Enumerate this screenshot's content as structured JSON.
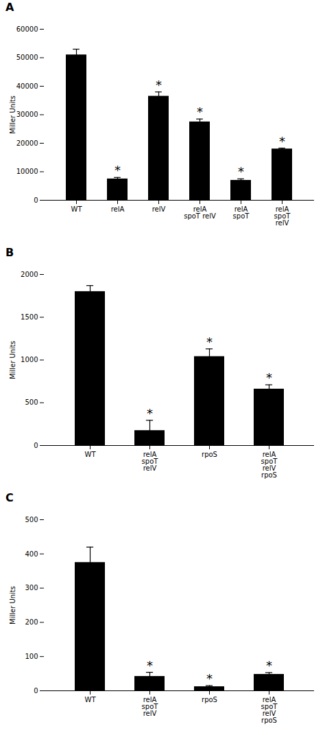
{
  "chart_data": [
    {
      "type": "bar",
      "title": "A",
      "categories": [
        "WT",
        "relA",
        "relV",
        "relA\nspoT relV",
        "relA\nspoT",
        "relA\nspoT\nrelV"
      ],
      "values": [
        51000,
        7500,
        36500,
        27500,
        7000,
        18000
      ],
      "errors": [
        2000,
        500,
        1500,
        1000,
        500,
        300
      ],
      "annotations": [
        {
          "category": "relA",
          "text": "*"
        },
        {
          "category": "relV",
          "text": "*"
        },
        {
          "category": "relA\nspoT relV",
          "text": "*"
        },
        {
          "category": "relA\nspoT",
          "text": "*"
        },
        {
          "category": "relA\nspoT\nrelV",
          "text": "*"
        }
      ],
      "ylabel": "Miller Units",
      "color": "#000000",
      "ylim": [
        0,
        60000
      ],
      "yticks": [
        0,
        10000,
        20000,
        30000,
        40000,
        50000,
        60000
      ]
    },
    {
      "type": "bar",
      "title": "B",
      "categories": [
        "WT",
        "relA\nspoT\nrelV",
        "rpoS",
        "relA\nspoT\nrelV\nrpoS"
      ],
      "values": [
        1800,
        175,
        1040,
        660
      ],
      "errors": [
        70,
        120,
        90,
        50
      ],
      "annotations": [
        {
          "category": "relA\nspoT\nrelV",
          "text": "*"
        },
        {
          "category": "rpoS",
          "text": "*"
        },
        {
          "category": "relA\nspoT\nrelV\nrpoS",
          "text": "*"
        }
      ],
      "ylabel": "Miller Units",
      "color": "#000000",
      "ylim": [
        0,
        2000
      ],
      "yticks": [
        0,
        500,
        1000,
        1500,
        2000
      ]
    },
    {
      "type": "bar",
      "title": "C",
      "categories": [
        "WT",
        "relA\nspoT\nrelV",
        "rpoS",
        "relA\nspoT\nrelV\nrpoS"
      ],
      "values": [
        375,
        42,
        12,
        48
      ],
      "errors": [
        45,
        12,
        3,
        5
      ],
      "annotations": [
        {
          "category": "relA\nspoT\nrelV",
          "text": "*"
        },
        {
          "category": "rpoS",
          "text": "*"
        },
        {
          "category": "relA\nspoT\nrelV\nrpoS",
          "text": "*"
        }
      ],
      "ylabel": "Miller Units",
      "color": "#000000",
      "ylim": [
        0,
        500
      ],
      "yticks": [
        0,
        100,
        200,
        300,
        400,
        500
      ]
    }
  ]
}
